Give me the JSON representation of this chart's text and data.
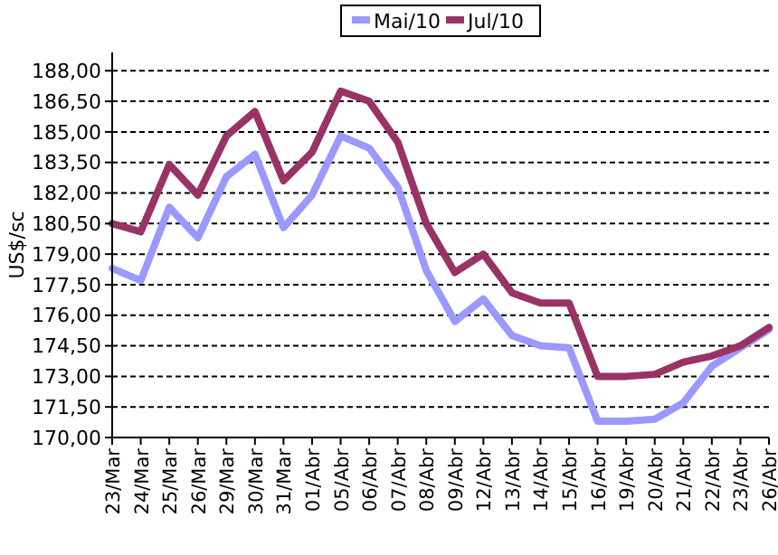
{
  "chart_data": {
    "type": "line",
    "ylabel": "US$/sc",
    "categories": [
      "23/Mar",
      "24/Mar",
      "25/Mar",
      "26/Mar",
      "29/Mar",
      "30/Mar",
      "31/Mar",
      "01/Abr",
      "05/Abr",
      "06/Abr",
      "07/Abr",
      "08/Abr",
      "09/Abr",
      "12/Abr",
      "13/Abr",
      "14/Abr",
      "15/Abr",
      "16/Abr",
      "19/Abr",
      "20/Abr",
      "21/Abr",
      "22/Abr",
      "23/Abr",
      "26/Abr"
    ],
    "series": [
      {
        "name": "Mai/10",
        "color": "#9999ff",
        "values": [
          178.3,
          177.7,
          181.3,
          179.8,
          182.8,
          183.9,
          180.3,
          181.9,
          184.8,
          184.2,
          182.3,
          178.2,
          175.7,
          176.8,
          175.0,
          174.5,
          174.4,
          170.8,
          170.8,
          170.9,
          171.7,
          173.5,
          174.4,
          175.3
        ]
      },
      {
        "name": "Jul/10",
        "color": "#993366",
        "values": [
          180.5,
          180.1,
          183.4,
          181.9,
          184.8,
          186.0,
          182.6,
          184.0,
          187.0,
          186.5,
          184.5,
          180.5,
          178.1,
          179.0,
          177.1,
          176.6,
          176.6,
          173.0,
          173.0,
          173.1,
          173.7,
          174.0,
          174.5,
          175.4
        ]
      }
    ],
    "ylim": [
      170,
      188.9
    ],
    "yticks": [
      {
        "value": 170,
        "label": "170,00"
      },
      {
        "value": 171.5,
        "label": "171,50"
      },
      {
        "value": 173,
        "label": "173,00"
      },
      {
        "value": 174.5,
        "label": "174,50"
      },
      {
        "value": 176,
        "label": "176,00"
      },
      {
        "value": 177.5,
        "label": "177,50"
      },
      {
        "value": 179,
        "label": "179,00"
      },
      {
        "value": 180.5,
        "label": "180,50"
      },
      {
        "value": 182,
        "label": "182,00"
      },
      {
        "value": 183.5,
        "label": "183,50"
      },
      {
        "value": 185,
        "label": "185,00"
      },
      {
        "value": 186.5,
        "label": "186,50"
      },
      {
        "value": 188,
        "label": "188,00"
      }
    ],
    "grid": "y",
    "legend": "top",
    "marker": "none",
    "line_style": "solid"
  }
}
